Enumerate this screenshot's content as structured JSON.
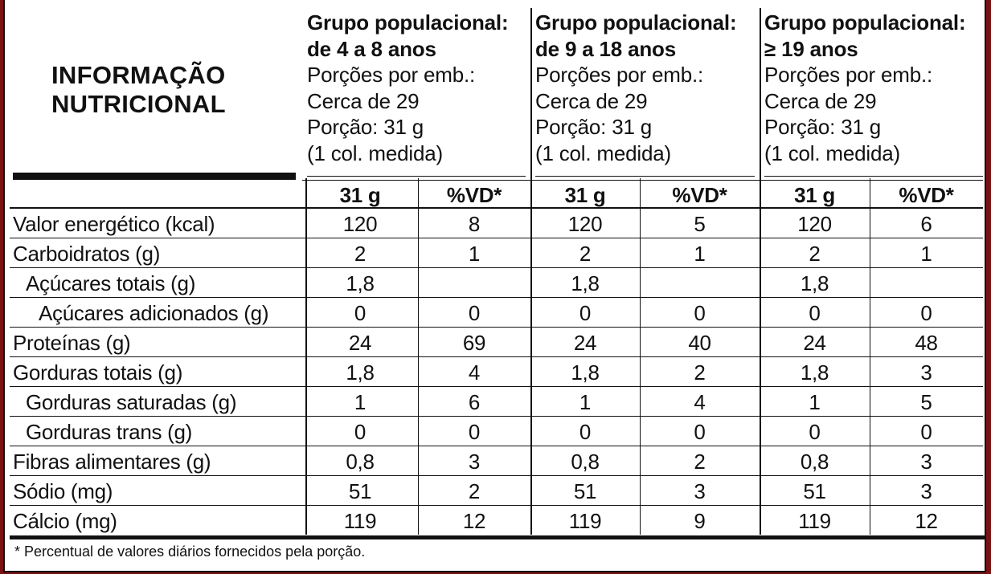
{
  "title": [
    "INFORMAÇÃO",
    "NUTRICIONAL"
  ],
  "groups": [
    {
      "line1": "Grupo populacional:",
      "line2": "de 4 a 8 anos",
      "line3": "Porções por emb.:",
      "line4": "Cerca de 29",
      "line5": "Porção: 31 g",
      "line6": "(1 col. medida)"
    },
    {
      "line1": "Grupo populacional:",
      "line2": "de 9 a 18 anos",
      "line3": "Porções por emb.:",
      "line4": "Cerca de 29",
      "line5": "Porção: 31 g",
      "line6": "(1 col. medida)"
    },
    {
      "line1": "Grupo populacional:",
      "line2": "≥ 19 anos",
      "line3": "Porções por emb.:",
      "line4": "Cerca de 29",
      "line5": "Porção: 31 g",
      "line6": "(1 col. medida)"
    }
  ],
  "column_headers": [
    "31 g",
    "%VD*",
    "31 g",
    "%VD*",
    "31 g",
    "%VD*"
  ],
  "rows": [
    {
      "label": "Valor energético (kcal)",
      "indent": 0,
      "values": [
        "120",
        "8",
        "120",
        "5",
        "120",
        "6"
      ]
    },
    {
      "label": "Carboidratos (g)",
      "indent": 0,
      "values": [
        "2",
        "1",
        "2",
        "1",
        "2",
        "1"
      ]
    },
    {
      "label": "Açúcares totais (g)",
      "indent": 1,
      "values": [
        "1,8",
        "",
        "1,8",
        "",
        "1,8",
        ""
      ]
    },
    {
      "label": "Açúcares adicionados (g)",
      "indent": 2,
      "values": [
        "0",
        "0",
        "0",
        "0",
        "0",
        "0"
      ]
    },
    {
      "label": "Proteínas (g)",
      "indent": 0,
      "values": [
        "24",
        "69",
        "24",
        "40",
        "24",
        "48"
      ]
    },
    {
      "label": "Gorduras totais (g)",
      "indent": 0,
      "values": [
        "1,8",
        "4",
        "1,8",
        "2",
        "1,8",
        "3"
      ]
    },
    {
      "label": "Gorduras saturadas (g)",
      "indent": 1,
      "values": [
        "1",
        "6",
        "1",
        "4",
        "1",
        "5"
      ]
    },
    {
      "label": "Gorduras trans (g)",
      "indent": 1,
      "values": [
        "0",
        "0",
        "0",
        "0",
        "0",
        "0"
      ]
    },
    {
      "label": "Fibras alimentares (g)",
      "indent": 0,
      "values": [
        "0,8",
        "3",
        "0,8",
        "2",
        "0,8",
        "3"
      ]
    },
    {
      "label": "Sódio (mg)",
      "indent": 0,
      "values": [
        "51",
        "2",
        "51",
        "3",
        "51",
        "3"
      ]
    },
    {
      "label": "Cálcio (mg)",
      "indent": 0,
      "values": [
        "119",
        "12",
        "119",
        "9",
        "119",
        "12"
      ]
    }
  ],
  "footnote": "* Percentual de valores diários fornecidos pela porção."
}
